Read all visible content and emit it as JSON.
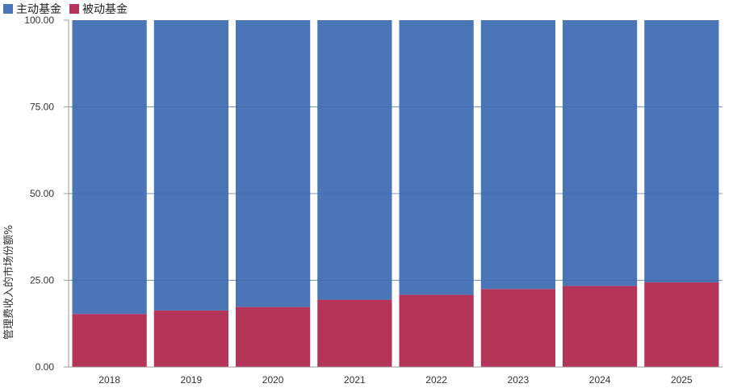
{
  "chart_data": {
    "type": "bar",
    "stacked": true,
    "categories": [
      "2018",
      "2019",
      "2020",
      "2021",
      "2022",
      "2023",
      "2024",
      "2025"
    ],
    "series": [
      {
        "name": "被动基金",
        "color": "#b5345a",
        "values": [
          15.3,
          16.3,
          17.3,
          19.4,
          20.8,
          22.5,
          23.4,
          24.4
        ]
      },
      {
        "name": "主动基金",
        "color": "#4a76b8",
        "values": [
          84.7,
          83.7,
          82.7,
          80.6,
          79.2,
          77.5,
          76.6,
          75.6
        ]
      }
    ],
    "ylabel": "管理费收入的市场份额%",
    "ylim": [
      0,
      100
    ],
    "yticks": [
      "0.00",
      "25.00",
      "50.00",
      "75.00",
      "100.00"
    ],
    "grid": true,
    "legend_position": "top-left"
  }
}
